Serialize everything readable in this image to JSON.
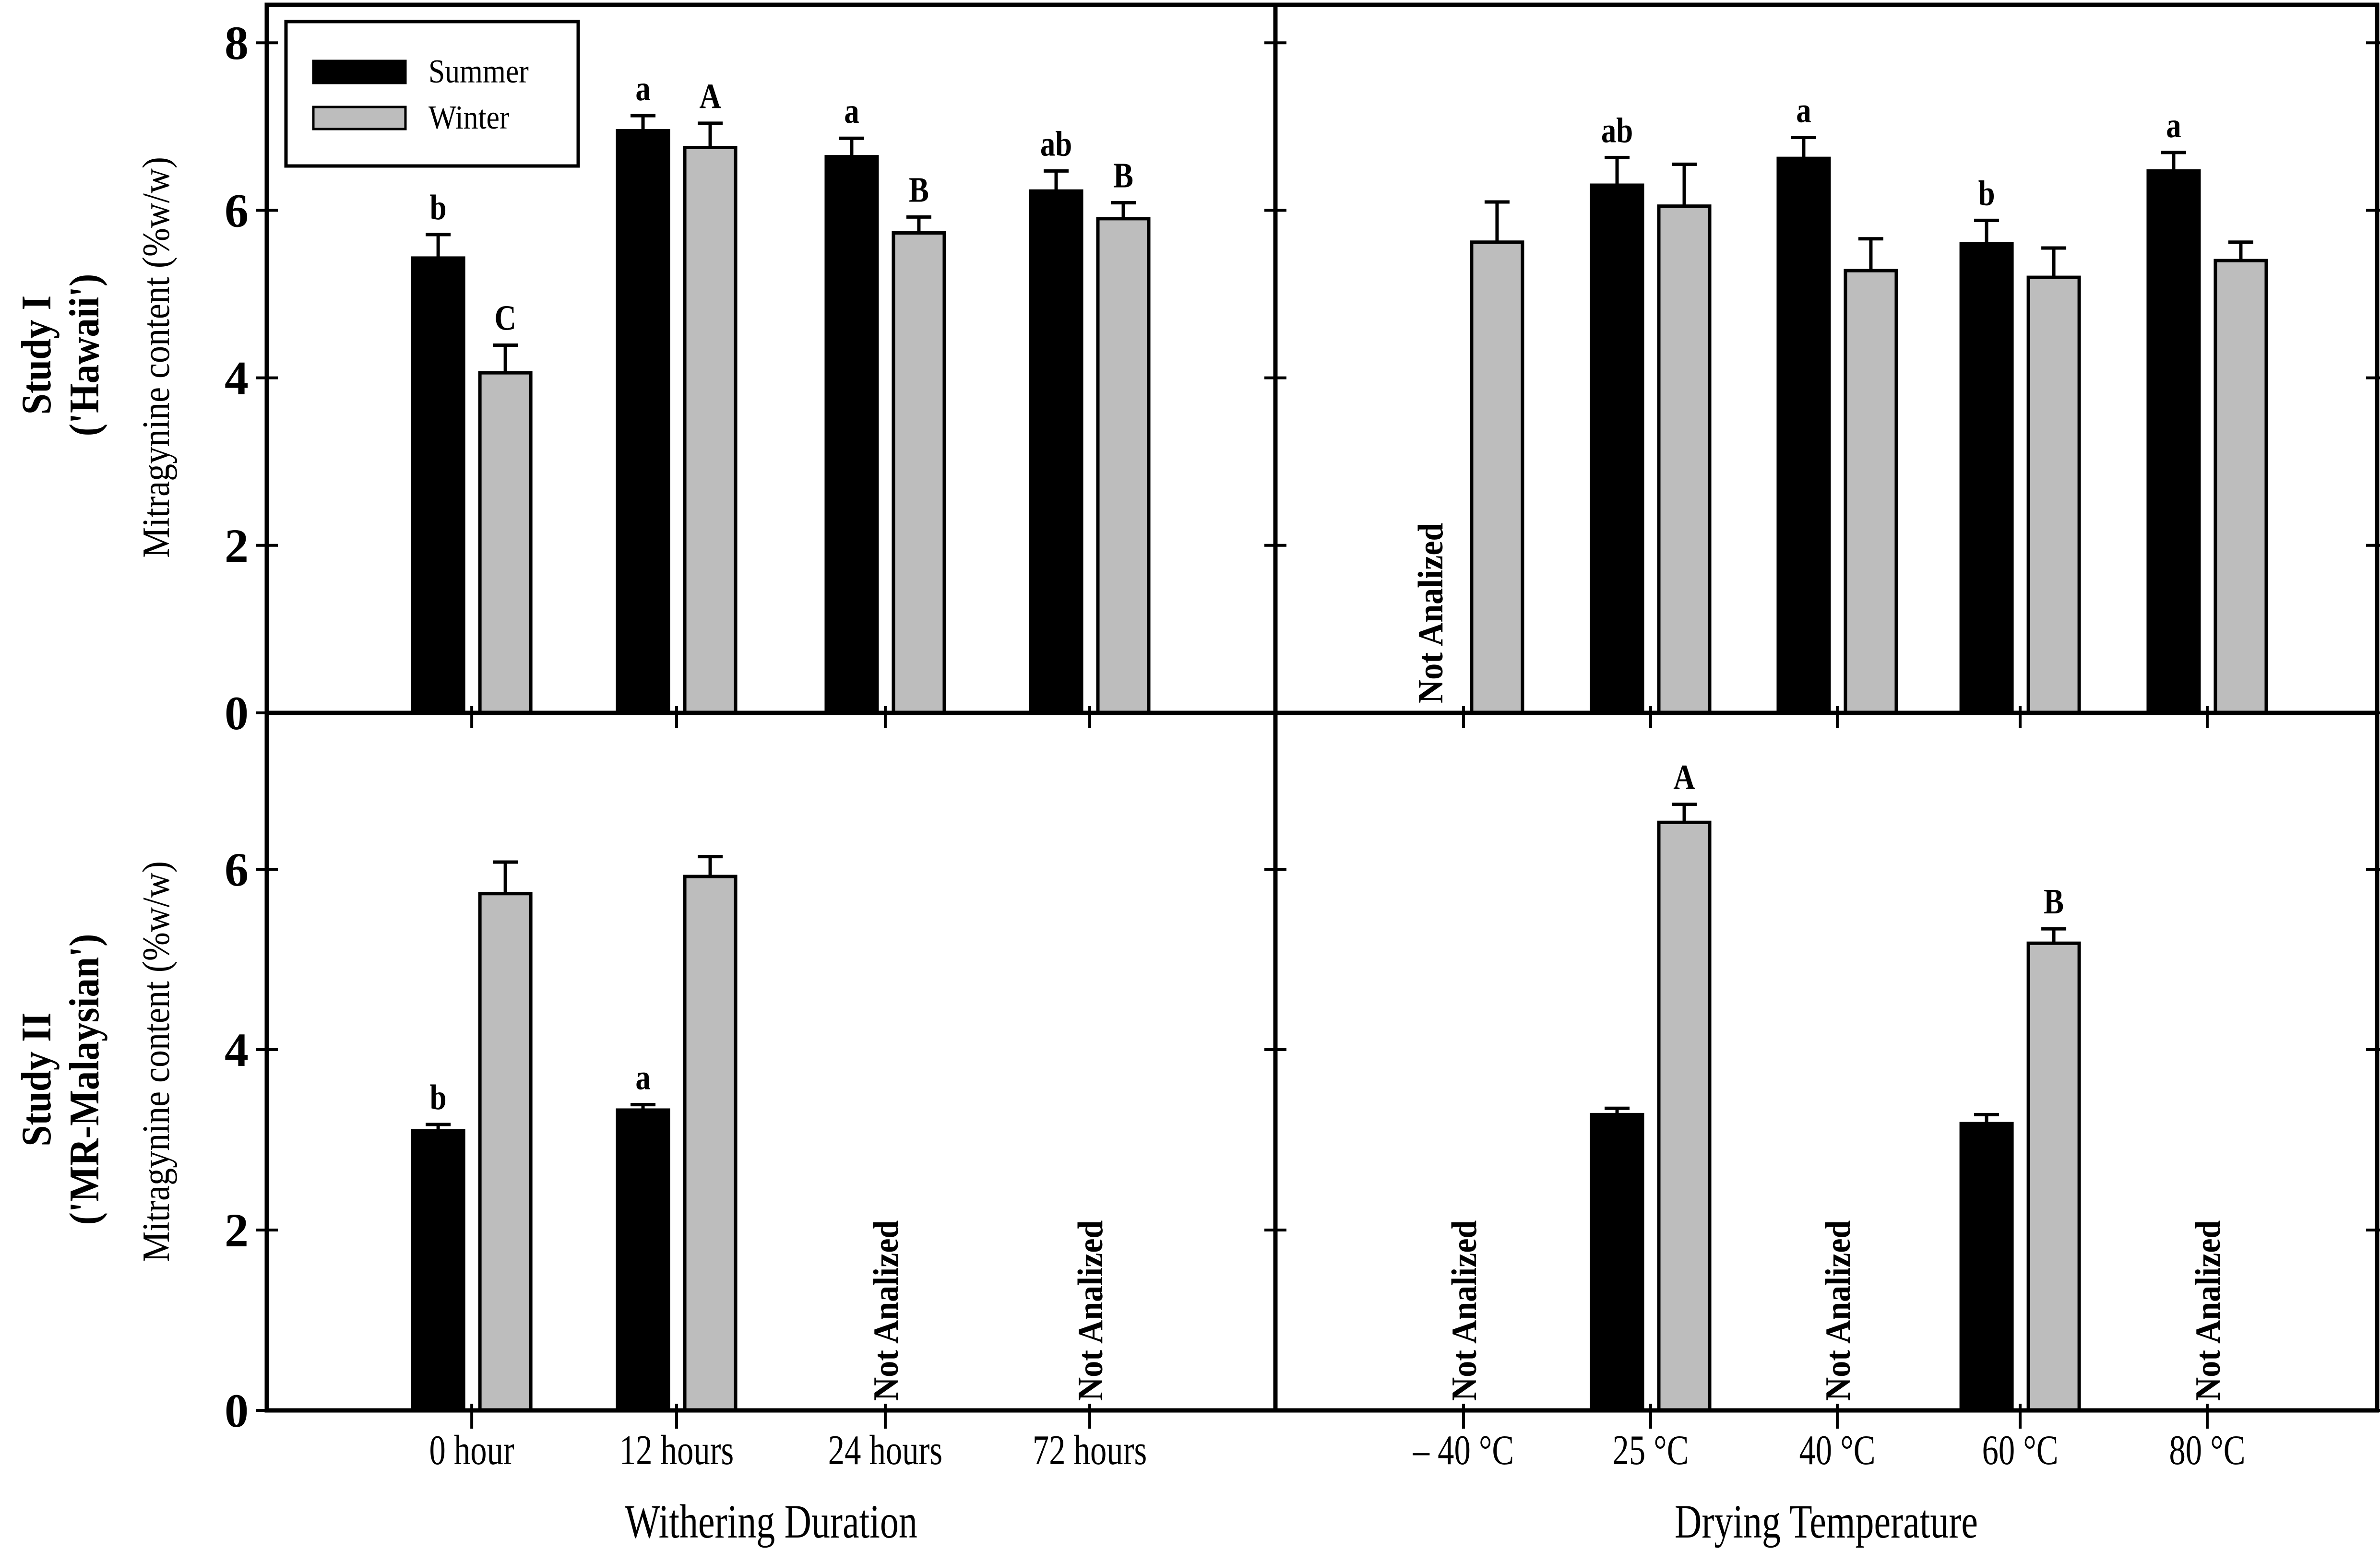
{
  "figure": {
    "background": "#ffffff",
    "colors": {
      "summer": "#000000",
      "winter": "#bdbdbd",
      "axis": "#000000",
      "text": "#000000"
    },
    "legend": {
      "items": [
        {
          "label": "Summer",
          "color_key": "summer"
        },
        {
          "label": "Winter",
          "color_key": "winter"
        }
      ]
    },
    "rows": [
      {
        "label_line1": "Study I",
        "label_line2": "('Hawaii')",
        "ylabel": "Mitragynine content (%w/w)",
        "yticks": [
          0,
          2,
          4,
          6,
          8
        ],
        "ymax": 8.45
      },
      {
        "label_line1": "Study II",
        "label_line2": "('MR-Malaysian')",
        "ylabel": "Mitragynine content (%w/w)",
        "yticks": [
          0,
          2,
          4,
          6
        ],
        "ymax": 7.73
      }
    ],
    "cols": [
      {
        "xlabel": "Withering Duration",
        "categories": [
          "0 hour",
          "12 hours",
          "24 hours",
          "72 hours"
        ]
      },
      {
        "xlabel": "Drying Temperature",
        "categories": [
          "– 40 °C",
          "25 °C",
          "40 °C",
          "60 °C",
          "80 °C"
        ]
      }
    ],
    "not_analyzed_label": "Not Analized"
  },
  "chart_data": [
    {
      "type": "bar",
      "row": 0,
      "col": 0,
      "title": "Study I ('Hawaii') vs Withering Duration",
      "categories": [
        "0 hour",
        "12 hours",
        "24 hours",
        "72 hours"
      ],
      "ylim": [
        0,
        8.45
      ],
      "yticks": [
        0,
        2,
        4,
        6,
        8
      ],
      "ylabel": "Mitragynine content (%w/w)",
      "xlabel": "Withering Duration",
      "legend_position": "top-left",
      "grid": false,
      "series": [
        {
          "name": "Summer",
          "color_key": "summer",
          "values": [
            5.43,
            6.95,
            6.64,
            6.23
          ],
          "errors": [
            0.28,
            0.18,
            0.22,
            0.24
          ],
          "letters": [
            "b",
            "a",
            "a",
            "ab"
          ],
          "not_analyzed": [
            false,
            false,
            false,
            false
          ]
        },
        {
          "name": "Winter",
          "color_key": "winter",
          "values": [
            4.06,
            6.75,
            5.73,
            5.9
          ],
          "errors": [
            0.33,
            0.29,
            0.19,
            0.19
          ],
          "letters": [
            "C",
            "A",
            "B",
            "B"
          ],
          "not_analyzed": [
            false,
            false,
            false,
            false
          ]
        }
      ],
      "group_not_analyzed": [
        false,
        false,
        false,
        false
      ]
    },
    {
      "type": "bar",
      "row": 0,
      "col": 1,
      "title": "Study I ('Hawaii') vs Drying Temperature",
      "categories": [
        "– 40 °C",
        "25 °C",
        "40 °C",
        "60 °C",
        "80 °C"
      ],
      "ylim": [
        0,
        8.45
      ],
      "yticks": [
        0,
        2,
        4,
        6,
        8
      ],
      "ylabel": "Mitragynine content (%w/w)",
      "xlabel": "Drying Temperature",
      "grid": false,
      "series": [
        {
          "name": "Summer",
          "color_key": "summer",
          "values": [
            null,
            6.3,
            6.62,
            5.6,
            6.47
          ],
          "errors": [
            null,
            0.33,
            0.25,
            0.28,
            0.22
          ],
          "letters": [
            null,
            "ab",
            "a",
            "b",
            "a"
          ],
          "not_analyzed": [
            true,
            false,
            false,
            false,
            false
          ]
        },
        {
          "name": "Winter",
          "color_key": "winter",
          "values": [
            5.62,
            6.05,
            5.28,
            5.2,
            5.4
          ],
          "errors": [
            0.48,
            0.5,
            0.38,
            0.35,
            0.22
          ],
          "letters": [
            null,
            null,
            null,
            null,
            null
          ],
          "not_analyzed": [
            false,
            false,
            false,
            false,
            false
          ]
        }
      ],
      "group_not_analyzed": [
        false,
        false,
        false,
        false,
        false
      ]
    },
    {
      "type": "bar",
      "row": 1,
      "col": 0,
      "title": "Study II ('MR-Malaysian') vs Withering Duration",
      "categories": [
        "0 hour",
        "12 hours",
        "24 hours",
        "72 hours"
      ],
      "ylim": [
        0,
        7.73
      ],
      "yticks": [
        0,
        2,
        4,
        6
      ],
      "ylabel": "Mitragynine content (%w/w)",
      "xlabel": "Withering Duration",
      "grid": false,
      "series": [
        {
          "name": "Summer",
          "color_key": "summer",
          "values": [
            3.1,
            3.33,
            null,
            null
          ],
          "errors": [
            0.07,
            0.06,
            null,
            null
          ],
          "letters": [
            "b",
            "a",
            null,
            null
          ],
          "not_analyzed": [
            false,
            false,
            false,
            false
          ]
        },
        {
          "name": "Winter",
          "color_key": "winter",
          "values": [
            5.73,
            5.92,
            null,
            null
          ],
          "errors": [
            0.35,
            0.22,
            null,
            null
          ],
          "letters": [
            null,
            null,
            null,
            null
          ],
          "not_analyzed": [
            false,
            false,
            false,
            false
          ]
        }
      ],
      "group_not_analyzed": [
        false,
        false,
        true,
        true
      ]
    },
    {
      "type": "bar",
      "row": 1,
      "col": 1,
      "title": "Study II ('MR-Malaysian') vs Drying Temperature",
      "categories": [
        "– 40 °C",
        "25 °C",
        "40 °C",
        "60 °C",
        "80 °C"
      ],
      "ylim": [
        0,
        7.73
      ],
      "yticks": [
        0,
        2,
        4,
        6
      ],
      "ylabel": "Mitragynine content (%w/w)",
      "xlabel": "Drying Temperature",
      "grid": false,
      "series": [
        {
          "name": "Summer",
          "color_key": "summer",
          "values": [
            null,
            3.28,
            null,
            3.18,
            null
          ],
          "errors": [
            null,
            0.07,
            null,
            0.1,
            null
          ],
          "letters": [
            null,
            null,
            null,
            null,
            null
          ],
          "not_analyzed": [
            false,
            false,
            false,
            false,
            false
          ]
        },
        {
          "name": "Winter",
          "color_key": "winter",
          "values": [
            null,
            6.52,
            null,
            5.18,
            null
          ],
          "errors": [
            null,
            0.2,
            null,
            0.16,
            null
          ],
          "letters": [
            null,
            "A",
            null,
            "B",
            null
          ],
          "not_analyzed": [
            false,
            false,
            false,
            false,
            false
          ]
        }
      ],
      "group_not_analyzed": [
        true,
        false,
        true,
        false,
        true
      ]
    }
  ]
}
